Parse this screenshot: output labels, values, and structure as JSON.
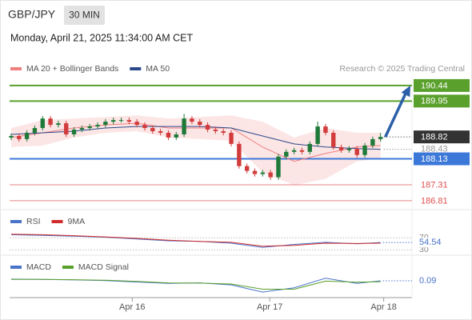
{
  "chart_data": [
    {
      "type": "candlestick",
      "title": "GBP/JPY",
      "timeframe": "30 MIN",
      "subtitle": "Monday, April 21, 2025 11:34:00 AM CET",
      "source": "Research © 2025 Trading Central",
      "xlim": [
        -0.2,
        51
      ],
      "xticks": [
        {
          "value": 15.4,
          "label": "Apr 16"
        },
        {
          "value": 32.9,
          "label": "Apr 17"
        },
        {
          "value": 47.4,
          "label": "Apr 18"
        }
      ],
      "ylim": [
        186.58,
        190.74
      ],
      "up_color": "#1f7a3a",
      "down_color": "#d23b3b",
      "open": [
        188.8,
        188.85,
        188.75,
        188.95,
        189.1,
        189.4,
        189.2,
        189.25,
        188.9,
        189.05,
        189.1,
        189.15,
        189.2,
        189.3,
        189.35,
        189.35,
        189.3,
        189.2,
        189.1,
        189.0,
        188.95,
        188.8,
        188.9,
        189.4,
        189.3,
        189.2,
        189.05,
        189.0,
        188.95,
        188.6,
        187.9,
        187.75,
        187.65,
        187.7,
        187.55,
        188.2,
        188.35,
        188.4,
        188.35,
        188.6,
        189.15,
        188.95,
        188.5,
        188.4,
        188.45,
        188.25,
        188.55,
        188.75
      ],
      "high": [
        188.93,
        188.93,
        189.03,
        189.18,
        189.48,
        189.48,
        189.33,
        189.33,
        189.13,
        189.18,
        189.23,
        189.28,
        189.38,
        189.43,
        189.43,
        189.43,
        189.38,
        189.28,
        189.18,
        189.08,
        189.03,
        188.98,
        189.55,
        189.48,
        189.38,
        189.28,
        189.13,
        189.08,
        189.03,
        188.68,
        187.98,
        187.83,
        187.78,
        187.78,
        188.28,
        188.43,
        188.48,
        188.48,
        188.68,
        189.3,
        189.23,
        189.03,
        188.58,
        188.53,
        188.53,
        188.63,
        188.83,
        188.95
      ],
      "low": [
        188.72,
        188.67,
        188.67,
        188.87,
        189.02,
        189.12,
        189.12,
        188.82,
        188.82,
        188.97,
        189.02,
        189.07,
        189.12,
        189.22,
        189.27,
        189.22,
        189.12,
        189.02,
        188.92,
        188.87,
        188.72,
        188.72,
        188.82,
        189.22,
        189.12,
        188.97,
        188.92,
        188.87,
        188.52,
        187.82,
        187.67,
        187.57,
        187.57,
        187.47,
        187.47,
        188.12,
        188.27,
        188.27,
        188.27,
        188.52,
        188.87,
        188.42,
        188.32,
        188.32,
        188.17,
        188.17,
        188.47,
        188.67
      ],
      "close": [
        188.85,
        188.75,
        188.95,
        189.1,
        189.4,
        189.2,
        189.25,
        188.9,
        189.05,
        189.1,
        189.15,
        189.2,
        189.3,
        189.35,
        189.35,
        189.3,
        189.2,
        189.1,
        189.0,
        188.95,
        188.8,
        188.9,
        189.4,
        189.3,
        189.2,
        189.05,
        189.0,
        188.95,
        188.6,
        187.9,
        187.75,
        187.65,
        187.7,
        187.55,
        188.2,
        188.35,
        188.4,
        188.35,
        188.6,
        189.15,
        188.95,
        188.5,
        188.4,
        188.45,
        188.25,
        188.55,
        188.75,
        188.82
      ],
      "overlays": [
        {
          "name": "MA 20 + Bollinger Bands",
          "color": "#f08080",
          "band_color": "#fbdada",
          "x": [
            0,
            4,
            8,
            12,
            16,
            20,
            24,
            28,
            32,
            36,
            40,
            44,
            47
          ],
          "values": [
            188.8,
            188.95,
            189.1,
            189.2,
            189.25,
            189.1,
            189.1,
            189.1,
            188.5,
            188.05,
            188.3,
            188.5,
            188.55
          ],
          "upper": [
            189.1,
            189.35,
            189.4,
            189.45,
            189.5,
            189.4,
            189.45,
            189.5,
            189.3,
            188.8,
            189.1,
            188.95,
            188.95
          ],
          "lower": [
            188.5,
            188.55,
            188.8,
            188.95,
            189.0,
            188.8,
            188.75,
            188.7,
            187.7,
            187.3,
            187.5,
            188.05,
            188.15
          ]
        },
        {
          "name": "MA 50",
          "color": "#2b4a8b",
          "x": [
            0,
            4,
            8,
            12,
            16,
            20,
            24,
            28,
            32,
            36,
            40,
            44,
            47
          ],
          "values": [
            188.9,
            188.95,
            189.0,
            189.1,
            189.15,
            189.15,
            189.15,
            189.1,
            188.85,
            188.6,
            188.5,
            188.45,
            188.43
          ]
        }
      ],
      "levels": [
        {
          "value": 190.44,
          "color": "#5aa02c",
          "box": true
        },
        {
          "value": 189.95,
          "color": "#5aa02c",
          "box": true
        },
        {
          "value": 188.13,
          "color": "#3c78d8",
          "box": true
        },
        {
          "value": 187.31,
          "color": "#e05050",
          "box": false
        },
        {
          "value": 186.81,
          "color": "#e05050",
          "box": false
        }
      ]
    },
    {
      "type": "line",
      "xlim": [
        -0.2,
        51
      ],
      "ylim": [
        15,
        105
      ],
      "yticks": [
        70,
        30
      ],
      "x": [
        0,
        4,
        8,
        12,
        16,
        20,
        24,
        28,
        32,
        36,
        40,
        44,
        47
      ],
      "series": [
        {
          "name": "RSI",
          "color": "#4a74c9",
          "values": [
            80,
            78,
            75,
            72,
            66,
            60,
            58,
            52,
            38,
            48,
            55,
            50,
            54.54
          ]
        },
        {
          "name": "9MA",
          "color": "#d22b2b",
          "values": [
            82,
            80,
            77,
            73,
            68,
            62,
            58,
            55,
            42,
            45,
            52,
            51,
            52
          ]
        }
      ]
    },
    {
      "type": "line",
      "xlim": [
        -0.2,
        51
      ],
      "ylim": [
        -0.49,
        0.45
      ],
      "x": [
        0,
        4,
        8,
        12,
        16,
        20,
        24,
        28,
        32,
        36,
        40,
        44,
        47
      ],
      "series": [
        {
          "name": "MACD",
          "color": "#4a74c9",
          "values": [
            0.15,
            0.14,
            0.12,
            0.1,
            0.05,
            0.0,
            0.02,
            -0.05,
            -0.3,
            -0.15,
            0.18,
            0.0,
            0.09
          ]
        },
        {
          "name": "MACD Signal",
          "color": "#5aa02c",
          "values": [
            0.14,
            0.14,
            0.13,
            0.11,
            0.07,
            0.02,
            0.01,
            -0.02,
            -0.2,
            -0.2,
            0.08,
            0.04,
            0.06
          ]
        }
      ]
    }
  ]
}
